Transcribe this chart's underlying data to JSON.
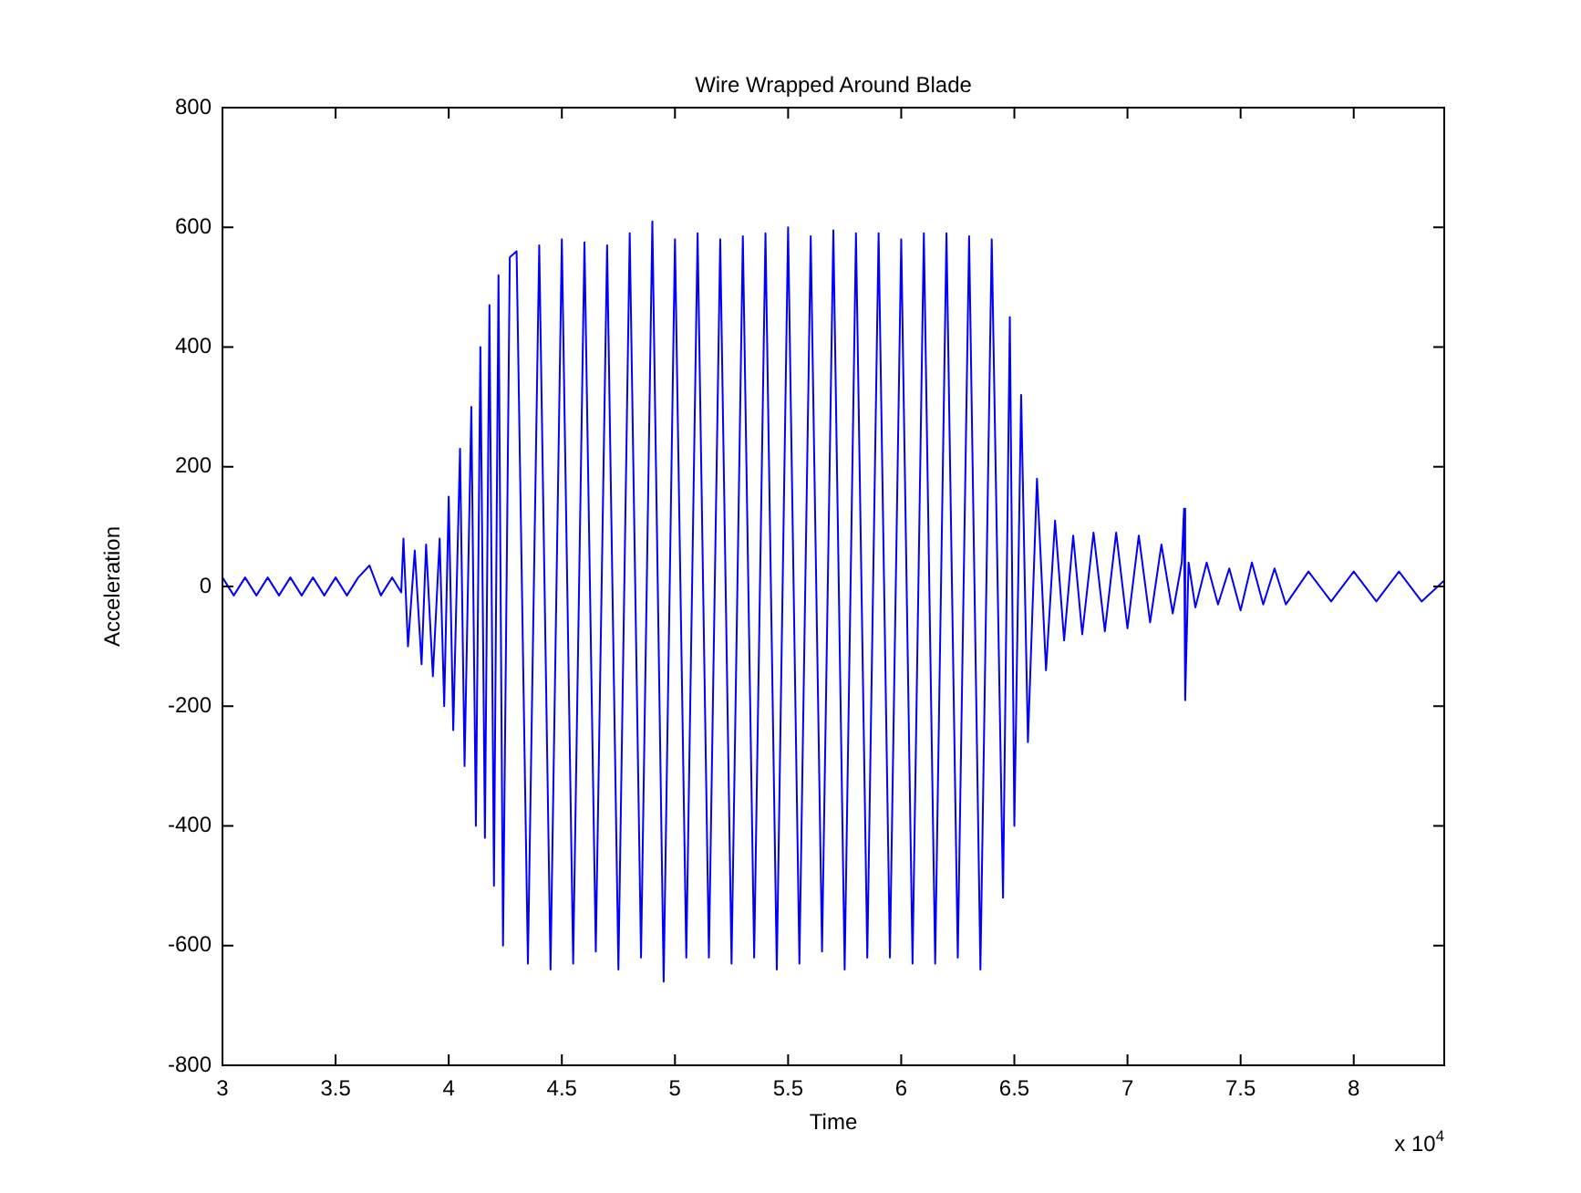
{
  "chart_data": {
    "type": "line",
    "title": "Wire Wrapped Around Blade",
    "xlabel": "Time",
    "ylabel": "Acceleration",
    "annotations": [
      "x 10$^{4}$"
    ],
    "xlim": [
      3,
      8.4
    ],
    "xticks": [
      3,
      3.5,
      4,
      4.5,
      5,
      5.5,
      6,
      6.5,
      7,
      7.5,
      8
    ],
    "ylim": [
      -800,
      800
    ],
    "yticks": [
      -800,
      -600,
      -400,
      -200,
      0,
      200,
      400,
      600,
      800
    ],
    "grid": false,
    "legend": false,
    "marker": "none",
    "line_style": "solid",
    "series": [
      {
        "color": "#0000ff",
        "x": [
          3,
          3.05,
          3.1,
          3.15,
          3.2,
          3.25,
          3.3,
          3.35,
          3.4,
          3.45,
          3.5,
          3.55,
          3.6,
          3.65,
          3.7,
          3.75,
          3.79,
          3.8,
          3.82,
          3.85,
          3.88,
          3.9,
          3.93,
          3.96,
          3.98,
          4,
          4.02,
          4.05,
          4.07,
          4.1,
          4.12,
          4.14,
          4.16,
          4.18,
          4.2,
          4.22,
          4.24,
          4.27,
          4.3,
          4.35,
          4.4,
          4.45,
          4.5,
          4.55,
          4.6,
          4.65,
          4.7,
          4.75,
          4.8,
          4.85,
          4.9,
          4.95,
          5,
          5.05,
          5.1,
          5.15,
          5.2,
          5.25,
          5.3,
          5.35,
          5.4,
          5.45,
          5.5,
          5.55,
          5.6,
          5.65,
          5.7,
          5.75,
          5.8,
          5.85,
          5.9,
          5.95,
          6,
          6.05,
          6.1,
          6.15,
          6.2,
          6.25,
          6.3,
          6.35,
          6.4,
          6.45,
          6.48,
          6.5,
          6.53,
          6.56,
          6.6,
          6.64,
          6.68,
          6.72,
          6.76,
          6.8,
          6.85,
          6.9,
          6.95,
          7,
          7.05,
          7.1,
          7.15,
          7.2,
          7.24,
          7.25,
          7.255,
          7.27,
          7.3,
          7.35,
          7.4,
          7.45,
          7.5,
          7.55,
          7.6,
          7.65,
          7.7,
          7.8,
          7.9,
          8,
          8.1,
          8.2,
          8.3,
          8.4
        ],
        "values": [
          15,
          -15,
          15,
          -15,
          15,
          -15,
          15,
          -15,
          15,
          -15,
          15,
          -15,
          15,
          35,
          -15,
          15,
          -10,
          80,
          -100,
          60,
          -130,
          70,
          -150,
          80,
          -200,
          150,
          -240,
          230,
          -300,
          300,
          -400,
          400,
          -420,
          470,
          -500,
          520,
          -600,
          550,
          560,
          -630,
          570,
          -640,
          580,
          -630,
          575,
          -610,
          570,
          -640,
          590,
          -620,
          610,
          -660,
          580,
          -620,
          590,
          -620,
          580,
          -630,
          585,
          -620,
          590,
          -640,
          600,
          -630,
          585,
          -610,
          595,
          -640,
          590,
          -620,
          590,
          -620,
          580,
          -630,
          590,
          -630,
          590,
          -620,
          585,
          -640,
          580,
          -520,
          450,
          -400,
          320,
          -260,
          180,
          -140,
          110,
          -90,
          85,
          -80,
          90,
          -75,
          90,
          -70,
          85,
          -60,
          70,
          -45,
          40,
          130,
          -190,
          40,
          -35,
          40,
          -30,
          30,
          -40,
          40,
          -30,
          30,
          -30,
          25,
          -25,
          25,
          -25,
          25,
          -25,
          10
        ]
      }
    ]
  }
}
